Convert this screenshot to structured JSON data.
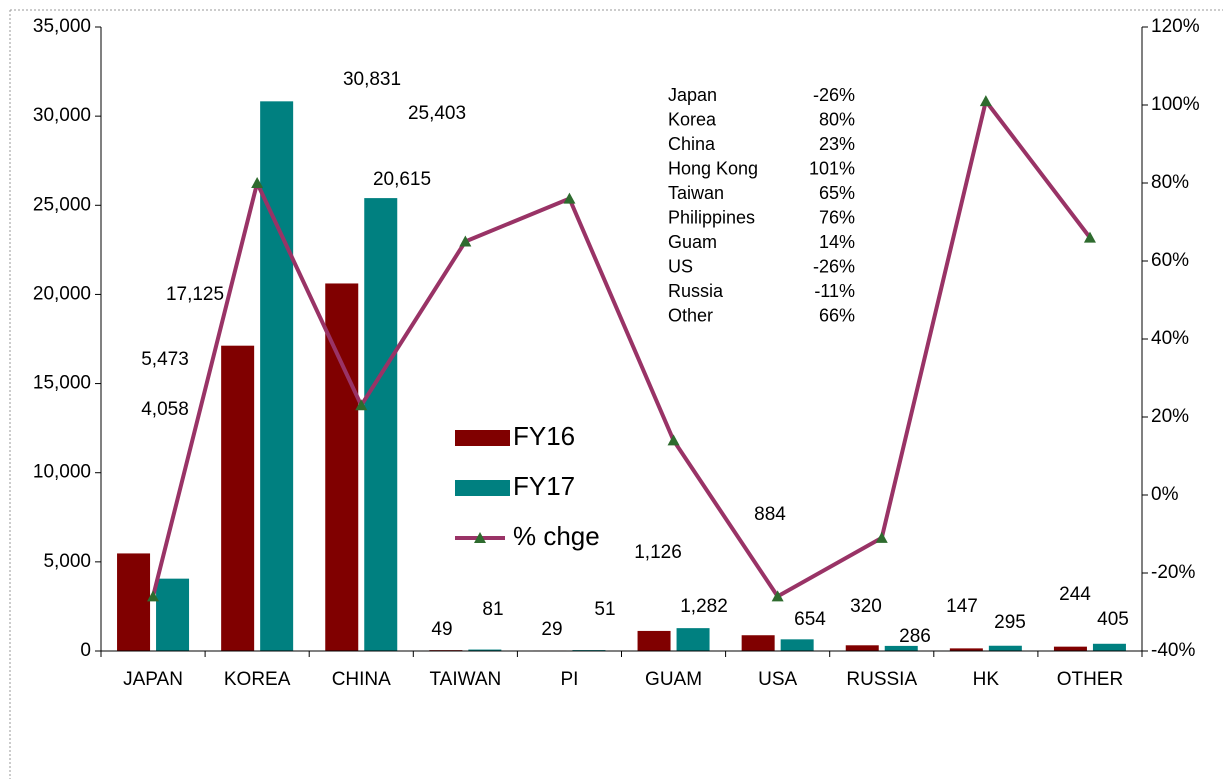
{
  "chart_data": {
    "type": "bar",
    "categories": [
      "JAPAN",
      "KOREA",
      "CHINA",
      "TAIWAN",
      "PI",
      "GUAM",
      "USA",
      "RUSSIA",
      "HK",
      "OTHER"
    ],
    "series": [
      {
        "name": "FY16",
        "color": "#800000",
        "values": [
          5473,
          17125,
          20615,
          49,
          29,
          1126,
          884,
          320,
          147,
          244
        ],
        "value_labels": [
          "5,473",
          "17,125",
          "20,615",
          "49",
          "29",
          "1,126",
          "884",
          "320",
          "147",
          "244"
        ]
      },
      {
        "name": "FY17",
        "color": "#008080",
        "values": [
          4058,
          30831,
          25403,
          81,
          51,
          1282,
          654,
          286,
          295,
          405
        ],
        "value_labels": [
          "4,058",
          "30,831",
          "25,403",
          "81",
          "51",
          "1,282",
          "654",
          "286",
          "295",
          "405"
        ]
      },
      {
        "name": "% chge",
        "type": "line",
        "axis": "y2",
        "color": "#993366",
        "marker_color": "#2e6b2e",
        "values": [
          -26,
          80,
          23,
          65,
          76,
          14,
          -26,
          -11,
          101,
          66
        ]
      }
    ],
    "ylim": [
      0,
      35000
    ],
    "yticks": [
      0,
      {
        "value": 5000,
        "label": "5,000"
      },
      {
        "value": 10000,
        "label": "10,000"
      },
      {
        "value": 15000,
        "label": "15,000"
      },
      {
        "value": 20000,
        "label": "20,000"
      },
      {
        "value": 25000,
        "label": "25,000"
      },
      {
        "value": 30000,
        "label": "30,000"
      },
      {
        "value": 35000,
        "label": "35,000"
      }
    ],
    "y2lim": [
      -40,
      120
    ],
    "y2ticks": [
      {
        "value": -40,
        "label": "-40%"
      },
      {
        "value": -20,
        "label": "-20%"
      },
      {
        "value": 0,
        "label": "0%"
      },
      {
        "value": 20,
        "label": "20%"
      },
      {
        "value": 40,
        "label": "40%"
      },
      {
        "value": 60,
        "label": "60%"
      },
      {
        "value": 80,
        "label": "80%"
      },
      {
        "value": 100,
        "label": "100%"
      },
      {
        "value": 120,
        "label": "120%"
      }
    ],
    "legend": "center",
    "annotation_table": [
      {
        "name": "Japan",
        "value": "-26%"
      },
      {
        "name": "Korea",
        "value": "80%"
      },
      {
        "name": "China",
        "value": "23%"
      },
      {
        "name": "Hong Kong",
        "value": "101%"
      },
      {
        "name": "Taiwan",
        "value": "65%"
      },
      {
        "name": "Philippines",
        "value": "76%"
      },
      {
        "name": "Guam",
        "value": "14%"
      },
      {
        "name": "US",
        "value": "-26%"
      },
      {
        "name": "Russia",
        "value": "-11%"
      },
      {
        "name": "Other",
        "value": "66%"
      }
    ]
  }
}
